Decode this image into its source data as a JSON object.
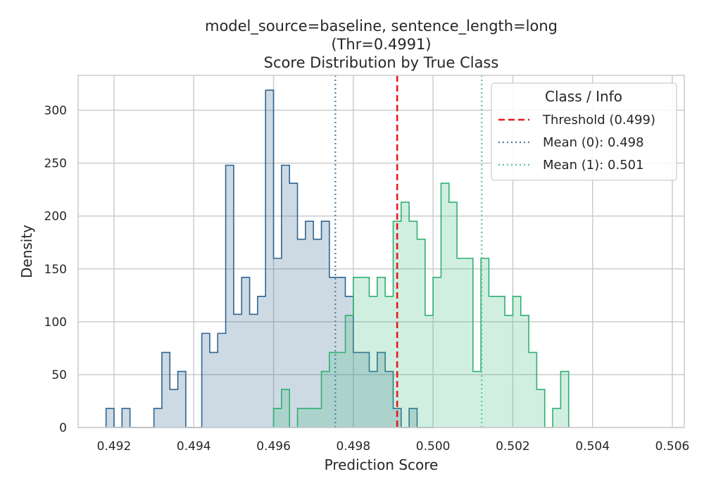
{
  "chart_data": {
    "type": "histogram",
    "title_lines": [
      "model_source=baseline, sentence_length=long",
      "(Thr=0.4991)",
      "Score Distribution by True Class"
    ],
    "xlabel": "Prediction Score",
    "ylabel": "Density",
    "xlim": [
      0.4911,
      0.5063
    ],
    "ylim": [
      0,
      333
    ],
    "xticks": [
      0.492,
      0.494,
      0.496,
      0.498,
      0.5,
      0.502,
      0.504,
      0.506
    ],
    "xtick_labels": [
      "0.492",
      "0.494",
      "0.496",
      "0.498",
      "0.500",
      "0.502",
      "0.504",
      "0.506"
    ],
    "yticks": [
      0,
      50,
      100,
      150,
      200,
      250,
      300
    ],
    "ytick_labels": [
      "0",
      "50",
      "100",
      "150",
      "200",
      "250",
      "300"
    ],
    "grid": true,
    "legend": {
      "title": "Class / Info",
      "placement": "top-right",
      "entries": [
        {
          "label": "Threshold (0.499)",
          "style": "dashed",
          "color": "#e41a1c"
        },
        {
          "label": "Mean (0): 0.498",
          "style": "dotted",
          "color": "#4c7fa3"
        },
        {
          "label": "Mean (1): 0.501",
          "style": "dotted",
          "color": "#5cc49a"
        }
      ]
    },
    "threshold": 0.4991,
    "mean_class0": 0.49755,
    "mean_class1": 0.50122,
    "series": [
      {
        "class": "0",
        "color": "#2f6490",
        "fill": "rgba(47,100,144,0.24)",
        "bin_start": 0.4918,
        "bin_width": 0.0002,
        "values": [
          18,
          0,
          18,
          0,
          0,
          0,
          18,
          71,
          36,
          53,
          0,
          0,
          89,
          71,
          89,
          248,
          107,
          142,
          107,
          124,
          319,
          160,
          248,
          231,
          178,
          195,
          178,
          195,
          142,
          142,
          124,
          71,
          71,
          53,
          71,
          53,
          18,
          0,
          18,
          0,
          0
        ]
      },
      {
        "class": "1",
        "color": "#2fb070",
        "fill": "rgba(64,190,130,0.24)",
        "bin_start": 0.496,
        "bin_width": 0.0002,
        "values": [
          18,
          36,
          0,
          18,
          18,
          18,
          53,
          71,
          71,
          106,
          142,
          142,
          124,
          142,
          124,
          195,
          213,
          195,
          178,
          106,
          142,
          231,
          213,
          160,
          160,
          53,
          160,
          124,
          124,
          106,
          124,
          106,
          71,
          36,
          0,
          18,
          53
        ]
      }
    ]
  }
}
